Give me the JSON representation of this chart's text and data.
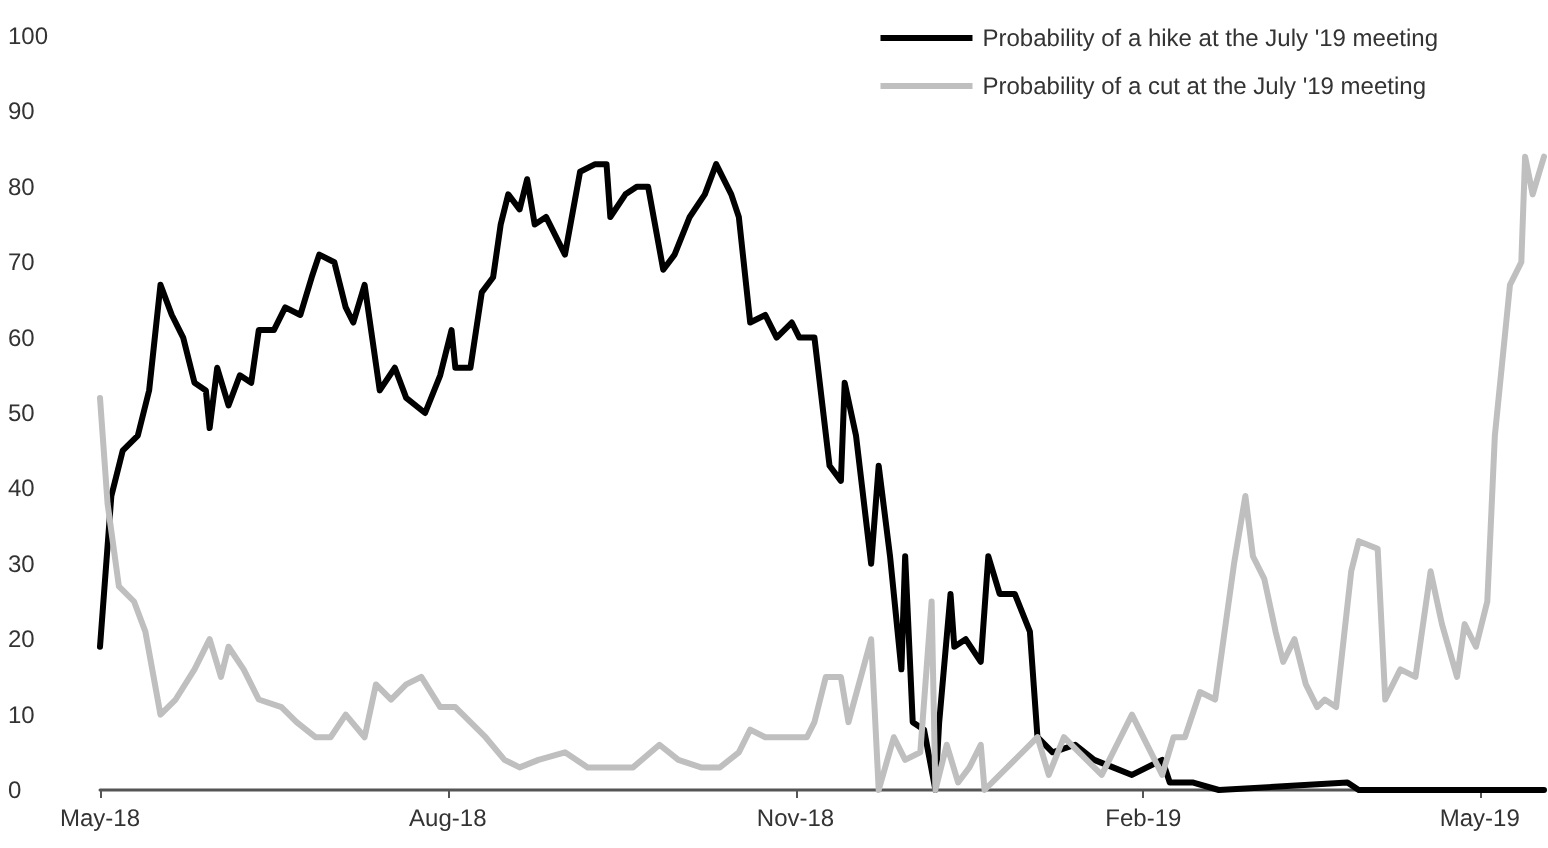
{
  "chart_data": {
    "type": "line",
    "xlim": [
      "2018-05-01",
      "2019-05-18"
    ],
    "xticks": [
      {
        "value": "2018-05-01",
        "label": "May-18"
      },
      {
        "value": "2018-08-01",
        "label": "Aug-18"
      },
      {
        "value": "2018-11-01",
        "label": "Nov-18"
      },
      {
        "value": "2019-02-01",
        "label": "Feb-19"
      },
      {
        "value": "2019-05-01",
        "label": "May-19"
      }
    ],
    "ylim": [
      0,
      100
    ],
    "yticks": [
      0,
      10,
      20,
      30,
      40,
      50,
      60,
      70,
      80,
      90,
      100
    ],
    "grid": false,
    "legend": "top right",
    "marker": "none",
    "line_style": "solid",
    "series": [
      {
        "name": "Probability of a hike at the July '19 meeting",
        "color": "#000000",
        "x": [
          "2018-05-01",
          "2018-05-04",
          "2018-05-07",
          "2018-05-11",
          "2018-05-14",
          "2018-05-17",
          "2018-05-20",
          "2018-05-23",
          "2018-05-26",
          "2018-05-29",
          "2018-05-30",
          "2018-06-01",
          "2018-06-04",
          "2018-06-07",
          "2018-06-10",
          "2018-06-12",
          "2018-06-16",
          "2018-06-19",
          "2018-06-23",
          "2018-06-26",
          "2018-06-28",
          "2018-07-02",
          "2018-07-05",
          "2018-07-07",
          "2018-07-10",
          "2018-07-14",
          "2018-07-18",
          "2018-07-21",
          "2018-07-26",
          "2018-07-30",
          "2018-08-02",
          "2018-08-03",
          "2018-08-07",
          "2018-08-10",
          "2018-08-13",
          "2018-08-15",
          "2018-08-17",
          "2018-08-20",
          "2018-08-22",
          "2018-08-24",
          "2018-08-27",
          "2018-09-01",
          "2018-09-05",
          "2018-09-09",
          "2018-09-12",
          "2018-09-13",
          "2018-09-17",
          "2018-09-20",
          "2018-09-23",
          "2018-09-27",
          "2018-09-30",
          "2018-10-04",
          "2018-10-08",
          "2018-10-11",
          "2018-10-15",
          "2018-10-17",
          "2018-10-20",
          "2018-10-24",
          "2018-10-27",
          "2018-10-31",
          "2018-11-02",
          "2018-11-06",
          "2018-11-10",
          "2018-11-13",
          "2018-11-14",
          "2018-11-17",
          "2018-11-21",
          "2018-11-23",
          "2018-11-26",
          "2018-11-29",
          "2018-11-30",
          "2018-12-02",
          "2018-12-05",
          "2018-12-08",
          "2018-12-09",
          "2018-12-12",
          "2018-12-13",
          "2018-12-16",
          "2018-12-20",
          "2018-12-22",
          "2018-12-25",
          "2018-12-29",
          "2019-01-02",
          "2019-01-04",
          "2019-01-08",
          "2019-01-14",
          "2019-01-19",
          "2019-01-24",
          "2019-01-29",
          "2019-02-06",
          "2019-02-08",
          "2019-02-14",
          "2019-02-21",
          "2019-03-27",
          "2019-03-30",
          "2019-05-18"
        ],
        "values": [
          19,
          39,
          45,
          47,
          53,
          67,
          63,
          60,
          54,
          53,
          48,
          56,
          51,
          55,
          54,
          61,
          61,
          64,
          63,
          68,
          71,
          70,
          64,
          62,
          67,
          53,
          56,
          52,
          50,
          55,
          61,
          56,
          56,
          66,
          68,
          75,
          79,
          77,
          81,
          75,
          76,
          71,
          82,
          83,
          83,
          76,
          79,
          80,
          80,
          69,
          71,
          76,
          79,
          83,
          79,
          76,
          62,
          63,
          60,
          62,
          60,
          60,
          43,
          41,
          54,
          47,
          30,
          43,
          31,
          16,
          31,
          9,
          8,
          0,
          9,
          26,
          19,
          20,
          17,
          31,
          26,
          26,
          21,
          7,
          5,
          6,
          4,
          3,
          2,
          4,
          1,
          1,
          0,
          1,
          0,
          0
        ]
      },
      {
        "name": "Probability of a cut at the July '19 meeting",
        "color": "#bfbfbf",
        "x": [
          "2018-05-01",
          "2018-05-03",
          "2018-05-06",
          "2018-05-10",
          "2018-05-13",
          "2018-05-17",
          "2018-05-21",
          "2018-05-26",
          "2018-05-30",
          "2018-06-02",
          "2018-06-04",
          "2018-06-08",
          "2018-06-12",
          "2018-06-18",
          "2018-06-22",
          "2018-06-27",
          "2018-07-01",
          "2018-07-05",
          "2018-07-10",
          "2018-07-13",
          "2018-07-17",
          "2018-07-21",
          "2018-07-25",
          "2018-07-30",
          "2018-08-03",
          "2018-08-07",
          "2018-08-11",
          "2018-08-16",
          "2018-08-20",
          "2018-08-25",
          "2018-09-01",
          "2018-09-07",
          "2018-09-12",
          "2018-09-19",
          "2018-09-26",
          "2018-10-01",
          "2018-10-07",
          "2018-10-12",
          "2018-10-17",
          "2018-10-20",
          "2018-10-24",
          "2018-10-29",
          "2018-11-04",
          "2018-11-06",
          "2018-11-09",
          "2018-11-13",
          "2018-11-15",
          "2018-11-21",
          "2018-11-23",
          "2018-11-27",
          "2018-11-30",
          "2018-12-04",
          "2018-12-07",
          "2018-12-08",
          "2018-12-11",
          "2018-12-14",
          "2018-12-17",
          "2018-12-20",
          "2018-12-21",
          "2019-01-04",
          "2019-01-07",
          "2019-01-11",
          "2019-01-15",
          "2019-01-21",
          "2019-01-25",
          "2019-01-29",
          "2019-02-03",
          "2019-02-06",
          "2019-02-09",
          "2019-02-12",
          "2019-02-16",
          "2019-02-20",
          "2019-02-25",
          "2019-02-28",
          "2019-03-02",
          "2019-03-05",
          "2019-03-08",
          "2019-03-10",
          "2019-03-13",
          "2019-03-16",
          "2019-03-19",
          "2019-03-21",
          "2019-03-24",
          "2019-03-28",
          "2019-03-30",
          "2019-04-04",
          "2019-04-06",
          "2019-04-10",
          "2019-04-14",
          "2019-04-18",
          "2019-04-21",
          "2019-04-25",
          "2019-04-27",
          "2019-04-30",
          "2019-05-03",
          "2019-05-05",
          "2019-05-09",
          "2019-05-12",
          "2019-05-13",
          "2019-05-15",
          "2019-05-18"
        ],
        "values": [
          52,
          38,
          27,
          25,
          21,
          10,
          12,
          16,
          20,
          15,
          19,
          16,
          12,
          11,
          9,
          7,
          7,
          10,
          7,
          14,
          12,
          14,
          15,
          11,
          11,
          9,
          7,
          4,
          3,
          4,
          5,
          3,
          3,
          3,
          6,
          4,
          3,
          3,
          5,
          8,
          7,
          7,
          7,
          9,
          15,
          15,
          9,
          20,
          0,
          7,
          4,
          5,
          25,
          0,
          6,
          1,
          3,
          6,
          0,
          7,
          2,
          7,
          5,
          2,
          6,
          10,
          5,
          2,
          7,
          7,
          13,
          12,
          30,
          39,
          31,
          28,
          21,
          17,
          20,
          14,
          11,
          12,
          11,
          29,
          33,
          32,
          12,
          16,
          15,
          29,
          22,
          15,
          22,
          19,
          25,
          47,
          67,
          70,
          84,
          79,
          84
        ]
      }
    ]
  }
}
